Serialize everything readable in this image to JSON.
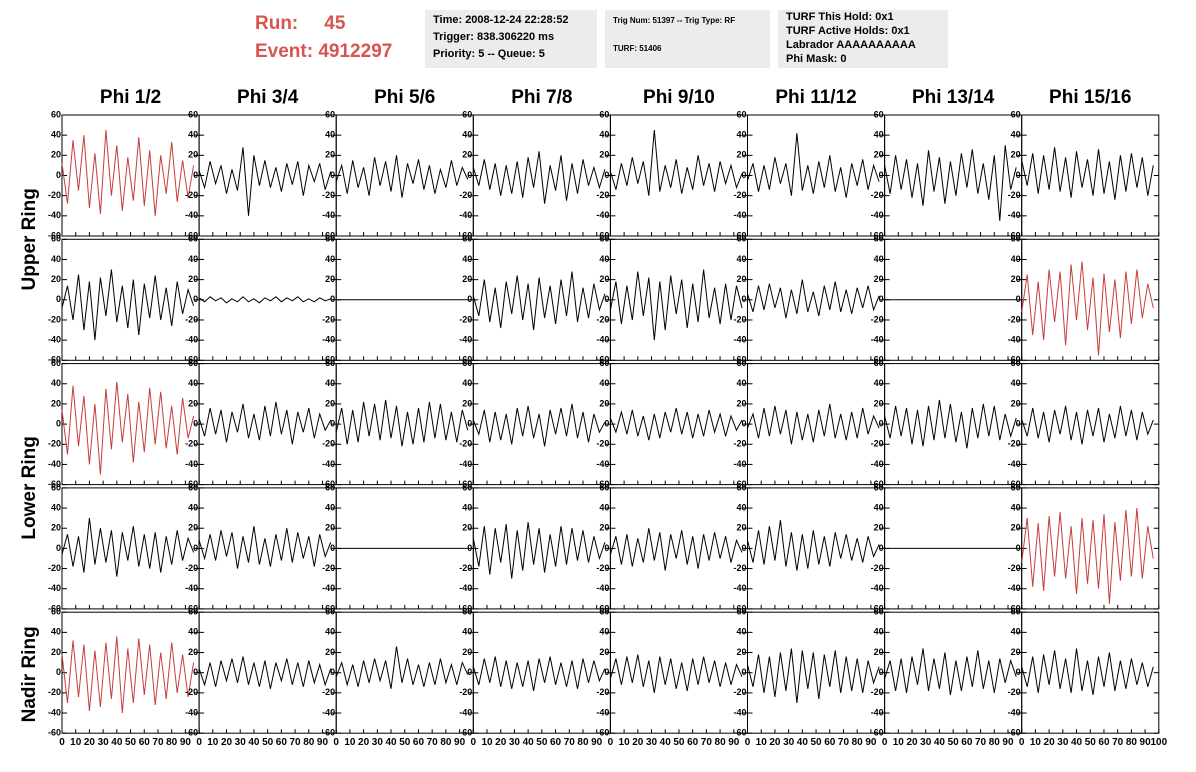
{
  "header": {
    "run_label": "Run:",
    "run": "45",
    "event_label": "Event:",
    "event": "4912297"
  },
  "info": [
    [
      "Time: 2008-12-24 22:28:52",
      "Trigger: 838.306220 ms",
      "Priority: 5 -- Queue: 5"
    ],
    [
      "Trig Num: 51397 -- Trig Type: RF",
      "TURF: 51406"
    ],
    [
      "TURF This Hold: 0x1",
      "TURF Active Holds: 0x1",
      "Labrador AAAAAAAAAA",
      "Phi Mask: 0"
    ]
  ],
  "columns": [
    "Phi 1/2",
    "Phi 3/4",
    "Phi 5/6",
    "Phi 7/8",
    "Phi 9/10",
    "Phi 11/12",
    "Phi 13/14",
    "Phi 15/16"
  ],
  "rings": [
    "Upper Ring",
    "Lower Ring",
    "Nadir Ring"
  ],
  "chart_data": {
    "type": "line",
    "x": [
      0,
      4,
      8,
      12,
      16,
      20,
      24,
      28,
      32,
      36,
      40,
      44,
      48,
      52,
      56,
      60,
      64,
      68,
      72,
      76,
      80,
      84,
      88,
      92,
      96
    ],
    "xlim": [
      0,
      100
    ],
    "ylim": [
      -60,
      60
    ],
    "xticks": [
      0,
      10,
      20,
      30,
      40,
      50,
      60,
      70,
      80,
      90,
      100
    ],
    "yticks": [
      -60,
      -40,
      -20,
      0,
      20,
      40,
      60
    ],
    "series": [
      {
        "color": "#c83c3c",
        "values": [
          12,
          -28,
          35,
          -15,
          40,
          -32,
          22,
          -38,
          45,
          -20,
          30,
          -35,
          18,
          -25,
          38,
          -30,
          25,
          -40,
          20,
          -18,
          33,
          -26,
          15,
          -22,
          10
        ]
      },
      {
        "color": "#000000",
        "values": [
          5,
          -12,
          14,
          -8,
          10,
          -18,
          6,
          -15,
          28,
          -40,
          20,
          -10,
          15,
          -12,
          8,
          -16,
          12,
          -9,
          14,
          -20,
          10,
          -6,
          12,
          -14,
          4
        ]
      },
      {
        "color": "#000000",
        "values": [
          -6,
          10,
          -18,
          15,
          -12,
          8,
          -20,
          18,
          -10,
          14,
          -16,
          20,
          -22,
          12,
          -8,
          16,
          -14,
          10,
          -18,
          6,
          -12,
          15,
          -10,
          8,
          -4
        ]
      },
      {
        "color": "#000000",
        "values": [
          8,
          -10,
          16,
          -14,
          12,
          -20,
          10,
          -18,
          14,
          -22,
          18,
          -12,
          24,
          -28,
          10,
          -15,
          20,
          -25,
          12,
          -18,
          16,
          -10,
          8,
          -12,
          6
        ]
      },
      {
        "color": "#000000",
        "values": [
          4,
          -14,
          12,
          -10,
          18,
          -8,
          14,
          -20,
          45,
          -16,
          10,
          -12,
          16,
          -18,
          8,
          -14,
          20,
          -10,
          12,
          -16,
          14,
          -8,
          10,
          -12,
          2
        ]
      },
      {
        "color": "#000000",
        "values": [
          -5,
          12,
          -16,
          10,
          -14,
          18,
          -8,
          12,
          -20,
          42,
          -15,
          10,
          -18,
          14,
          -12,
          20,
          -16,
          8,
          -22,
          12,
          -10,
          16,
          -14,
          10,
          -6
        ]
      },
      {
        "color": "#000000",
        "values": [
          10,
          -18,
          20,
          -14,
          16,
          -22,
          12,
          -30,
          25,
          -16,
          18,
          -28,
          14,
          -20,
          22,
          -12,
          26,
          -18,
          12,
          -24,
          20,
          -45,
          30,
          -14,
          8
        ]
      },
      {
        "color": "#000000",
        "values": [
          15,
          -10,
          22,
          -18,
          20,
          -14,
          28,
          -16,
          18,
          -22,
          24,
          -12,
          16,
          -20,
          26,
          -18,
          14,
          -24,
          20,
          -16,
          22,
          -12,
          18,
          -20,
          10
        ]
      },
      {
        "color": "#000000",
        "values": [
          -8,
          14,
          -20,
          25,
          -30,
          18,
          -40,
          22,
          -16,
          30,
          -22,
          14,
          -28,
          20,
          -35,
          16,
          -18,
          24,
          -20,
          12,
          -26,
          18,
          -14,
          10,
          -6
        ]
      },
      {
        "color": "#000000",
        "values": [
          2,
          -2,
          3,
          -1,
          2,
          -3,
          1,
          -2,
          3,
          -2,
          1,
          -3,
          2,
          -1,
          3,
          -2,
          2,
          -1,
          3,
          -2,
          1,
          -2,
          2,
          -1,
          1
        ]
      },
      {
        "color": "#000000",
        "values": [
          0,
          0,
          0,
          0,
          0,
          0,
          0,
          0,
          0,
          0,
          0,
          0,
          0,
          0,
          0,
          0,
          0,
          0,
          0,
          0,
          0,
          0,
          0,
          0,
          0
        ]
      },
      {
        "color": "#000000",
        "values": [
          4,
          -16,
          20,
          -22,
          12,
          -28,
          18,
          -14,
          24,
          -20,
          16,
          -30,
          22,
          -18,
          14,
          -24,
          20,
          -16,
          28,
          -22,
          12,
          -18,
          16,
          -10,
          6
        ]
      },
      {
        "color": "#000000",
        "values": [
          -10,
          18,
          -24,
          14,
          -20,
          28,
          -16,
          22,
          -40,
          18,
          -30,
          24,
          -14,
          20,
          -28,
          16,
          -22,
          30,
          -18,
          12,
          -24,
          16,
          -20,
          14,
          -8
        ]
      },
      {
        "color": "#000000",
        "values": [
          6,
          -12,
          14,
          -10,
          16,
          -8,
          12,
          -18,
          10,
          -14,
          20,
          -12,
          8,
          -16,
          14,
          -10,
          18,
          -12,
          10,
          -14,
          12,
          -8,
          14,
          -10,
          4
        ]
      },
      {
        "color": "#000000",
        "values": [
          0,
          0,
          0,
          0,
          0,
          0,
          0,
          0,
          0,
          0,
          0,
          0,
          0,
          0,
          0,
          0,
          0,
          0,
          0,
          0,
          0,
          0,
          0,
          0,
          0
        ]
      },
      {
        "color": "#c83c3c",
        "values": [
          -12,
          25,
          -35,
          18,
          -40,
          30,
          -22,
          28,
          -45,
          35,
          -20,
          38,
          -30,
          22,
          -55,
          26,
          -32,
          20,
          -38,
          28,
          -24,
          30,
          -18,
          16,
          -8
        ]
      },
      {
        "color": "#c83c3c",
        "values": [
          14,
          -30,
          38,
          -22,
          28,
          -40,
          20,
          -50,
          35,
          -25,
          42,
          -18,
          30,
          -38,
          22,
          -28,
          36,
          -20,
          32,
          -24,
          18,
          -30,
          26,
          -14,
          8
        ]
      },
      {
        "color": "#000000",
        "values": [
          6,
          -12,
          16,
          -10,
          14,
          -18,
          12,
          -8,
          20,
          -14,
          10,
          -16,
          18,
          -12,
          22,
          -10,
          14,
          -20,
          12,
          -8,
          16,
          -14,
          10,
          -6,
          4
        ]
      },
      {
        "color": "#000000",
        "values": [
          -8,
          16,
          -20,
          14,
          -18,
          22,
          -12,
          20,
          -16,
          24,
          -14,
          18,
          -22,
          12,
          -20,
          16,
          -18,
          22,
          -14,
          20,
          -16,
          12,
          -18,
          14,
          -6
        ]
      },
      {
        "color": "#000000",
        "values": [
          4,
          -10,
          14,
          -18,
          12,
          -16,
          10,
          -20,
          16,
          -12,
          18,
          -14,
          10,
          -22,
          14,
          -10,
          16,
          -12,
          20,
          -14,
          12,
          -18,
          10,
          -8,
          2
        ]
      },
      {
        "color": "#000000",
        "values": [
          6,
          -8,
          12,
          -10,
          14,
          -12,
          8,
          -16,
          10,
          -14,
          12,
          -8,
          16,
          -10,
          12,
          -14,
          10,
          -12,
          14,
          -8,
          10,
          -12,
          8,
          -6,
          4
        ]
      },
      {
        "color": "#000000",
        "values": [
          -4,
          10,
          -14,
          16,
          -12,
          18,
          -10,
          14,
          -20,
          12,
          -16,
          10,
          -18,
          14,
          -12,
          20,
          -14,
          10,
          -16,
          12,
          -14,
          16,
          -10,
          8,
          -4
        ]
      },
      {
        "color": "#000000",
        "values": [
          8,
          -14,
          18,
          -12,
          16,
          -20,
          14,
          -22,
          18,
          -16,
          24,
          -14,
          20,
          -18,
          12,
          -24,
          16,
          -14,
          20,
          -12,
          18,
          -16,
          10,
          -12,
          6
        ]
      },
      {
        "color": "#000000",
        "values": [
          5,
          -12,
          16,
          -14,
          12,
          -18,
          14,
          -10,
          18,
          -16,
          12,
          -20,
          14,
          -12,
          16,
          -18,
          10,
          -14,
          18,
          -12,
          14,
          -16,
          12,
          -10,
          4
        ]
      },
      {
        "color": "#000000",
        "values": [
          -6,
          14,
          -18,
          12,
          -24,
          30,
          -16,
          20,
          -14,
          18,
          -28,
          16,
          -12,
          22,
          -18,
          14,
          -20,
          16,
          -24,
          12,
          -16,
          18,
          -12,
          10,
          -4
        ]
      },
      {
        "color": "#000000",
        "values": [
          8,
          -10,
          14,
          -12,
          18,
          -8,
          16,
          -20,
          12,
          -14,
          22,
          -16,
          10,
          -18,
          14,
          -12,
          20,
          -14,
          16,
          -10,
          12,
          -18,
          14,
          -8,
          6
        ]
      },
      {
        "color": "#000000",
        "values": [
          0,
          0,
          0,
          0,
          0,
          0,
          0,
          0,
          0,
          0,
          0,
          0,
          0,
          0,
          0,
          0,
          0,
          0,
          0,
          0,
          0,
          0,
          0,
          0,
          0
        ]
      },
      {
        "color": "#000000",
        "values": [
          10,
          -18,
          22,
          -26,
          20,
          -14,
          24,
          -30,
          18,
          -22,
          26,
          -16,
          20,
          -24,
          14,
          -18,
          22,
          -16,
          20,
          -12,
          18,
          -14,
          12,
          -10,
          6
        ]
      },
      {
        "color": "#000000",
        "values": [
          -6,
          12,
          -16,
          14,
          -18,
          10,
          -14,
          20,
          -12,
          16,
          -22,
          14,
          -10,
          18,
          -16,
          12,
          -20,
          14,
          -12,
          16,
          -10,
          12,
          -14,
          8,
          -4
        ]
      },
      {
        "color": "#000000",
        "values": [
          8,
          -14,
          18,
          -16,
          22,
          -12,
          28,
          -18,
          16,
          -22,
          14,
          -20,
          18,
          -16,
          12,
          -18,
          16,
          -10,
          14,
          -12,
          10,
          -14,
          12,
          -8,
          4
        ]
      },
      {
        "color": "#000000",
        "values": [
          0,
          0,
          0,
          0,
          0,
          0,
          0,
          0,
          0,
          0,
          0,
          0,
          0,
          0,
          0,
          0,
          0,
          0,
          0,
          0,
          0,
          0,
          0,
          0,
          0
        ]
      },
      {
        "color": "#c83c3c",
        "values": [
          -14,
          30,
          -38,
          25,
          -42,
          32,
          -28,
          36,
          -30,
          22,
          -45,
          30,
          -35,
          28,
          -40,
          34,
          -55,
          26,
          -32,
          38,
          -28,
          40,
          -30,
          22,
          -10
        ]
      },
      {
        "color": "#c83c3c",
        "values": [
          18,
          -30,
          32,
          -24,
          28,
          -38,
          22,
          -34,
          30,
          -26,
          36,
          -40,
          24,
          -30,
          34,
          -22,
          28,
          -32,
          20,
          -26,
          30,
          -20,
          18,
          -24,
          10
        ]
      },
      {
        "color": "#000000",
        "values": [
          4,
          -12,
          10,
          -14,
          12,
          -8,
          14,
          -10,
          16,
          -12,
          10,
          -14,
          12,
          -16,
          10,
          -8,
          14,
          -12,
          10,
          -14,
          12,
          -10,
          8,
          -12,
          4
        ]
      },
      {
        "color": "#000000",
        "values": [
          -4,
          10,
          -12,
          8,
          -14,
          12,
          -10,
          14,
          -8,
          12,
          -16,
          26,
          -10,
          14,
          -12,
          8,
          -14,
          10,
          -12,
          14,
          -10,
          8,
          -12,
          10,
          -2
        ]
      },
      {
        "color": "#000000",
        "values": [
          6,
          -12,
          14,
          -10,
          16,
          -14,
          12,
          -16,
          10,
          -14,
          12,
          -18,
          14,
          -10,
          16,
          -12,
          10,
          -14,
          12,
          -16,
          14,
          -10,
          12,
          -8,
          4
        ]
      },
      {
        "color": "#000000",
        "values": [
          -6,
          14,
          -12,
          16,
          -10,
          18,
          -14,
          12,
          -20,
          16,
          -12,
          14,
          -16,
          10,
          -18,
          14,
          -12,
          16,
          -10,
          12,
          -14,
          10,
          -12,
          8,
          -4
        ]
      },
      {
        "color": "#000000",
        "values": [
          8,
          -14,
          18,
          -20,
          16,
          -24,
          20,
          -18,
          24,
          -30,
          22,
          -16,
          20,
          -26,
          18,
          -14,
          22,
          -20,
          16,
          -18,
          14,
          -20,
          12,
          -10,
          6
        ]
      },
      {
        "color": "#000000",
        "values": [
          -6,
          12,
          -18,
          14,
          -20,
          16,
          -12,
          24,
          -18,
          14,
          -16,
          20,
          -22,
          12,
          -18,
          16,
          -14,
          22,
          -16,
          12,
          -20,
          14,
          -10,
          12,
          -4
        ]
      },
      {
        "color": "#000000",
        "values": [
          6,
          -14,
          16,
          -20,
          18,
          -12,
          22,
          -16,
          14,
          -20,
          24,
          -18,
          12,
          -22,
          16,
          -14,
          20,
          -18,
          12,
          -16,
          14,
          -12,
          10,
          -14,
          6
        ]
      }
    ]
  }
}
